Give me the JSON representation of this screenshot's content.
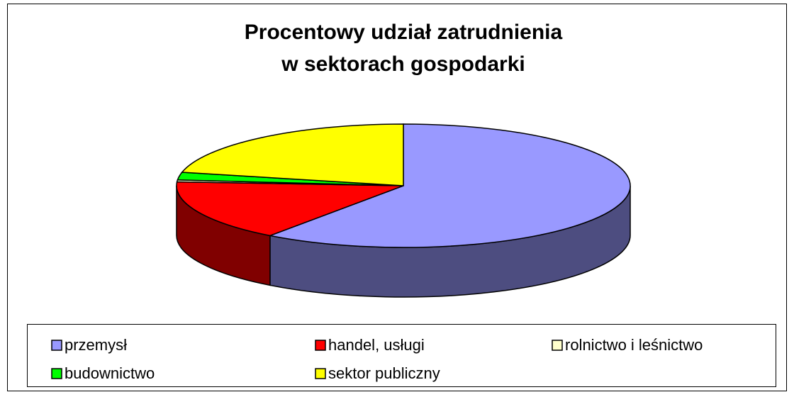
{
  "chart_data": {
    "type": "pie3d",
    "title": [
      "Procentowy udział zatrudnienia",
      "w sektorach gospodarki"
    ],
    "categories": [
      "przemysł",
      "handel, usługi",
      "rolnictwo i leśnictwo",
      "budownictwo",
      "sektor publiczny"
    ],
    "values": [
      60,
      16,
      0.5,
      2,
      21.5
    ],
    "colors": [
      "#9999ff",
      "#ff0000",
      "#ffffcc",
      "#00ff00",
      "#ffff00"
    ]
  }
}
